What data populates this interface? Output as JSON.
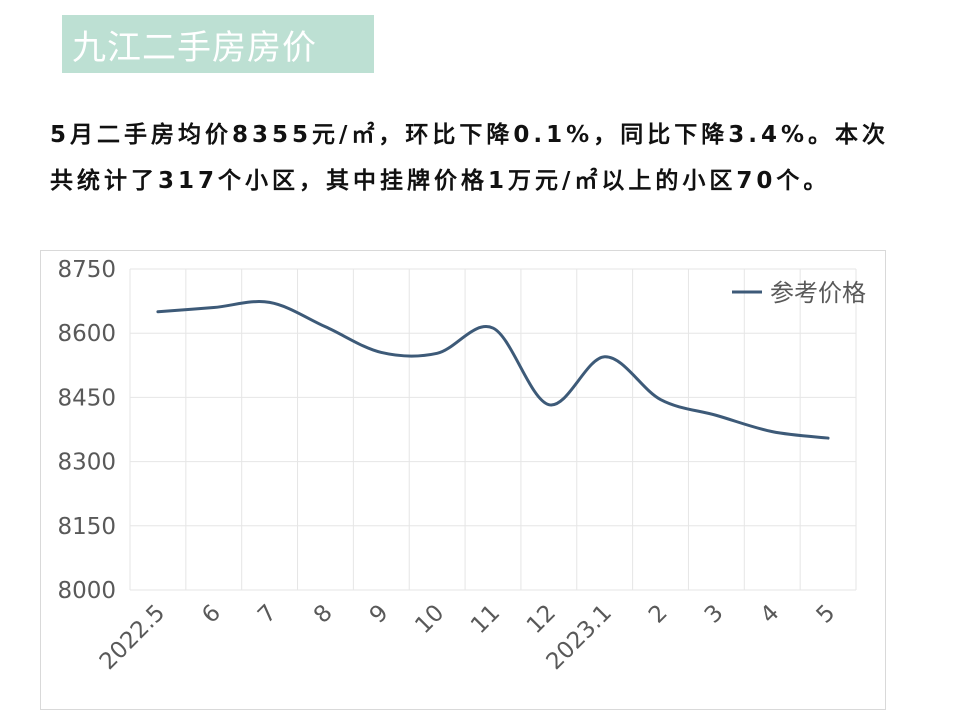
{
  "header": {
    "title": "九江二手房房价"
  },
  "summary": {
    "text": "5月二手房均价8355元/㎡，环比下降0.1%，同比下降3.4%。本次共统计了317个小区，其中挂牌价格1万元/㎡以上的小区70个。"
  },
  "colors": {
    "banner": "#bde0d3",
    "line": "#3d5a78",
    "grid": "#e6e6e6"
  },
  "chart_data": {
    "type": "line",
    "title": "",
    "xlabel": "",
    "ylabel": "",
    "categories": [
      "2022.5",
      "6",
      "7",
      "8",
      "9",
      "10",
      "11",
      "12",
      "2023.1",
      "2",
      "3",
      "4",
      "5"
    ],
    "series": [
      {
        "name": "参考价格",
        "values": [
          8650,
          8660,
          8672,
          8615,
          8555,
          8553,
          8612,
          8433,
          8545,
          8445,
          8408,
          8370,
          8355
        ]
      }
    ],
    "ylim": [
      8000,
      8750
    ],
    "yticks": [
      "8000",
      "8150",
      "8300",
      "8450",
      "8600",
      "8750"
    ],
    "grid": true,
    "legend_position": "top-right"
  }
}
